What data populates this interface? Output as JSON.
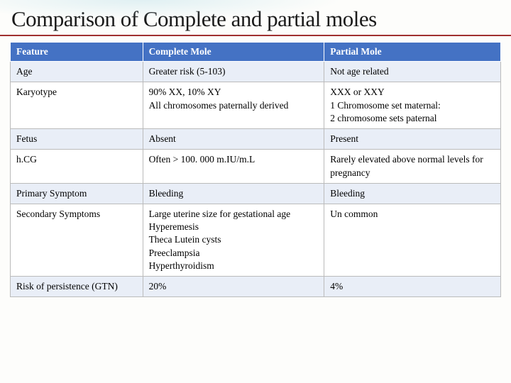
{
  "title": "Comparison of Complete and partial moles",
  "header_bg_color": "#4472c4",
  "header_text_color": "#ffffff",
  "alt_row_bg": "#e9eef7",
  "title_underline_color": "#a03030",
  "columns": [
    "Feature",
    "Complete Mole",
    "Partial Mole"
  ],
  "rows": [
    {
      "feature": "Age",
      "complete": "Greater risk (5-103)",
      "partial": "Not age related"
    },
    {
      "feature": "Karyotype",
      "complete": "90% XX, 10% XY\nAll chromosomes paternally derived",
      "partial": "XXX or XXY\n1 Chromosome set maternal:\n 2 chromosome sets paternal"
    },
    {
      "feature": "Fetus",
      "complete": "Absent",
      "partial": "Present"
    },
    {
      "feature": "h.CG",
      "complete": "Often > 100. 000 m.IU/m.L",
      "partial": "Rarely elevated above normal levels for pregnancy"
    },
    {
      "feature": "Primary Symptom",
      "complete": "Bleeding",
      "partial": "Bleeding"
    },
    {
      "feature": "Secondary Symptoms",
      "complete": "Large uterine size for gestational age\nHyperemesis\nTheca Lutein cysts\nPreeclampsia\nHyperthyroidism",
      "partial": "Un common"
    },
    {
      "feature": "Risk of persistence (GTN)",
      "complete": "20%",
      "partial": "4%"
    }
  ]
}
